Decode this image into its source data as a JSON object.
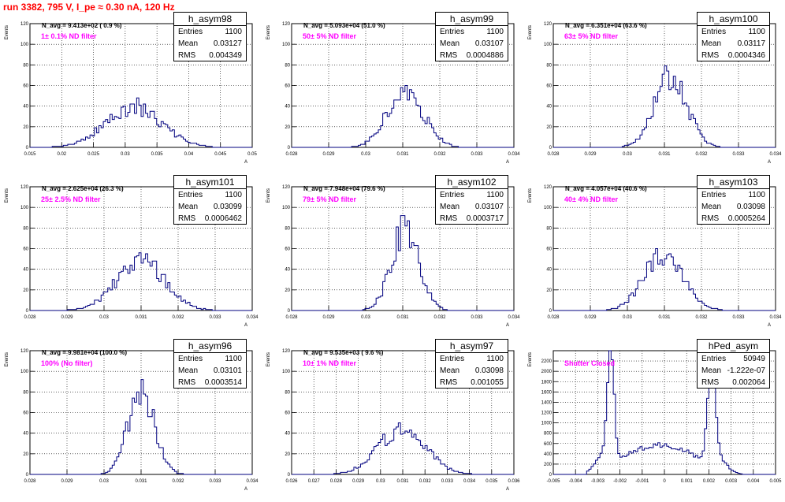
{
  "page_title": "run 3382,   795 V, I_pe ≈ 0.30 nA, 120 Hz",
  "colors": {
    "title": "#ff0000",
    "annotation": "#ff00ff",
    "histogram": "#00007f",
    "grid": "#000000"
  },
  "chart_data": [
    {
      "type": "histogram",
      "name": "h_asym98",
      "stats": {
        "Entries": "1100",
        "Mean": "0.03127",
        "RMS": "0.004349"
      },
      "navg_text": "N_avg = 9.413e+02 ( 0.9 %)",
      "annotation": "1± 0.1% ND filter",
      "ylabel": "Events",
      "xlabel": "A",
      "xlim": [
        0.015,
        0.05
      ],
      "ylim": [
        0,
        120
      ],
      "xticks": [
        0.015,
        0.02,
        0.025,
        0.03,
        0.035,
        0.04,
        0.045,
        0.05
      ],
      "xtick_labels": [
        "0.015",
        "0.02",
        "0.025",
        "0.03",
        "0.035",
        "0.04",
        "0.045",
        "0.05"
      ],
      "yticks": [
        0,
        20,
        40,
        60,
        80,
        100,
        120
      ],
      "ytick_labels": [
        "0",
        "20",
        "40",
        "60",
        "80",
        "100",
        "120"
      ],
      "grid": true,
      "mean": 0.03127,
      "rms": 0.004349,
      "peak": 40,
      "shape": "gauss"
    },
    {
      "type": "histogram",
      "name": "h_asym99",
      "stats": {
        "Entries": "1100",
        "Mean": "0.03107",
        "RMS": "0.0004886"
      },
      "navg_text": "N_avg = 5.093e+04 (51.0 %)",
      "annotation": "50± 5% ND filter",
      "ylabel": "Events",
      "xlabel": "A",
      "xlim": [
        0.028,
        0.034
      ],
      "ylim": [
        0,
        120
      ],
      "xticks": [
        0.028,
        0.029,
        0.03,
        0.031,
        0.032,
        0.033,
        0.034
      ],
      "xtick_labels": [
        "0.028",
        "0.029",
        "0.03",
        "0.031",
        "0.032",
        "0.033",
        "0.034"
      ],
      "yticks": [
        0,
        20,
        40,
        60,
        80,
        100,
        120
      ],
      "ytick_labels": [
        "0",
        "20",
        "40",
        "60",
        "80",
        "100",
        "120"
      ],
      "grid": true,
      "mean": 0.03107,
      "rms": 0.0004886,
      "peak": 55,
      "shape": "gauss"
    },
    {
      "type": "histogram",
      "name": "h_asym100",
      "stats": {
        "Entries": "1100",
        "Mean": "0.03117",
        "RMS": "0.0004346"
      },
      "navg_text": "N_avg = 6.351e+04 (63.6 %)",
      "annotation": "63± 5% ND filter",
      "ylabel": "Events",
      "xlabel": "A",
      "xlim": [
        0.028,
        0.034
      ],
      "ylim": [
        0,
        120
      ],
      "xticks": [
        0.028,
        0.029,
        0.03,
        0.031,
        0.032,
        0.033,
        0.034
      ],
      "xtick_labels": [
        "0.028",
        "0.029",
        "0.03",
        "0.031",
        "0.032",
        "0.033",
        "0.034"
      ],
      "yticks": [
        0,
        20,
        40,
        60,
        80,
        100,
        120
      ],
      "ytick_labels": [
        "0",
        "20",
        "40",
        "60",
        "80",
        "100",
        "120"
      ],
      "grid": true,
      "mean": 0.03117,
      "rms": 0.0004346,
      "peak": 70,
      "shape": "gauss"
    },
    {
      "type": "histogram",
      "name": "h_asym101",
      "stats": {
        "Entries": "1100",
        "Mean": "0.03099",
        "RMS": "0.0006462"
      },
      "navg_text": "N_avg = 2.625e+04 (26.3 %)",
      "annotation": "25± 2.5% ND filter",
      "ylabel": "Events",
      "xlabel": "A",
      "xlim": [
        0.028,
        0.034
      ],
      "ylim": [
        0,
        120
      ],
      "xticks": [
        0.028,
        0.029,
        0.03,
        0.031,
        0.032,
        0.033,
        0.034
      ],
      "xtick_labels": [
        "0.028",
        "0.029",
        "0.03",
        "0.031",
        "0.032",
        "0.033",
        "0.034"
      ],
      "yticks": [
        0,
        20,
        40,
        60,
        80,
        100,
        120
      ],
      "ytick_labels": [
        "0",
        "20",
        "40",
        "60",
        "80",
        "100",
        "120"
      ],
      "grid": true,
      "mean": 0.03099,
      "rms": 0.0006462,
      "peak": 48,
      "shape": "gauss"
    },
    {
      "type": "histogram",
      "name": "h_asym102",
      "stats": {
        "Entries": "1100",
        "Mean": "0.03107",
        "RMS": "0.0003717"
      },
      "navg_text": "N_avg = 7.948e+04 (79.6 %)",
      "annotation": "79± 5% ND filter",
      "ylabel": "Events",
      "xlabel": "A",
      "xlim": [
        0.028,
        0.034
      ],
      "ylim": [
        0,
        120
      ],
      "xticks": [
        0.028,
        0.029,
        0.03,
        0.031,
        0.032,
        0.033,
        0.034
      ],
      "xtick_labels": [
        "0.028",
        "0.029",
        "0.03",
        "0.031",
        "0.032",
        "0.033",
        "0.034"
      ],
      "yticks": [
        0,
        20,
        40,
        60,
        80,
        100,
        120
      ],
      "ytick_labels": [
        "0",
        "20",
        "40",
        "60",
        "80",
        "100",
        "120"
      ],
      "grid": true,
      "mean": 0.03107,
      "rms": 0.0003717,
      "peak": 80,
      "shape": "gauss"
    },
    {
      "type": "histogram",
      "name": "h_asym103",
      "stats": {
        "Entries": "1100",
        "Mean": "0.03098",
        "RMS": "0.0005264"
      },
      "navg_text": "N_avg = 4.057e+04 (40.6 %)",
      "annotation": "40± 4% ND filter",
      "ylabel": "Events",
      "xlabel": "A",
      "xlim": [
        0.028,
        0.034
      ],
      "ylim": [
        0,
        120
      ],
      "xticks": [
        0.028,
        0.029,
        0.03,
        0.031,
        0.032,
        0.033,
        0.034
      ],
      "xtick_labels": [
        "0.028",
        "0.029",
        "0.03",
        "0.031",
        "0.032",
        "0.033",
        "0.034"
      ],
      "yticks": [
        0,
        20,
        40,
        60,
        80,
        100,
        120
      ],
      "ytick_labels": [
        "0",
        "20",
        "40",
        "60",
        "80",
        "100",
        "120"
      ],
      "grid": true,
      "mean": 0.03098,
      "rms": 0.0005264,
      "peak": 55,
      "shape": "gauss"
    },
    {
      "type": "histogram",
      "name": "h_asym96",
      "stats": {
        "Entries": "1100",
        "Mean": "0.03101",
        "RMS": "0.0003514"
      },
      "navg_text": "N_avg = 9.981e+04 (100.0 %)",
      "annotation": "100% (No filter)",
      "ylabel": "Events",
      "xlabel": "A",
      "xlim": [
        0.028,
        0.034
      ],
      "ylim": [
        0,
        120
      ],
      "xticks": [
        0.028,
        0.029,
        0.03,
        0.031,
        0.032,
        0.033,
        0.034
      ],
      "xtick_labels": [
        "0.028",
        "0.029",
        "0.03",
        "0.031",
        "0.032",
        "0.033",
        "0.034"
      ],
      "yticks": [
        0,
        20,
        40,
        60,
        80,
        100,
        120
      ],
      "ytick_labels": [
        "0",
        "20",
        "40",
        "60",
        "80",
        "100",
        "120"
      ],
      "grid": true,
      "mean": 0.03101,
      "rms": 0.0003514,
      "peak": 82,
      "shape": "gauss"
    },
    {
      "type": "histogram",
      "name": "h_asym97",
      "stats": {
        "Entries": "1100",
        "Mean": "0.03098",
        "RMS": "0.001055"
      },
      "navg_text": "N_avg = 9.535e+03 ( 9.6 %)",
      "annotation": "10± 1% ND filter",
      "ylabel": "Events",
      "xlabel": "A",
      "xlim": [
        0.026,
        0.036
      ],
      "ylim": [
        0,
        120
      ],
      "xticks": [
        0.026,
        0.027,
        0.028,
        0.029,
        0.03,
        0.031,
        0.032,
        0.033,
        0.034,
        0.035,
        0.036
      ],
      "xtick_labels": [
        "0.026",
        "0.027",
        "0.028",
        "0.029",
        "0.03",
        "0.031",
        "0.032",
        "0.033",
        "0.034",
        "0.035",
        "0.036"
      ],
      "yticks": [
        0,
        20,
        40,
        60,
        80,
        100,
        120
      ],
      "ytick_labels": [
        "0",
        "20",
        "40",
        "60",
        "80",
        "100",
        "120"
      ],
      "grid": true,
      "mean": 0.03098,
      "rms": 0.001055,
      "peak": 45,
      "shape": "gauss"
    },
    {
      "type": "histogram",
      "name": "hPed_asym",
      "stats": {
        "Entries": "50949",
        "Mean": "-1.222e-07",
        "RMS": "0.002064"
      },
      "navg_text": "",
      "annotation": "Shutter Closed",
      "ylabel": "Events",
      "xlabel": "",
      "xlim": [
        -0.005,
        0.005
      ],
      "ylim": [
        0,
        2400
      ],
      "xticks": [
        -0.005,
        -0.004,
        -0.003,
        -0.002,
        -0.001,
        0,
        0.001,
        0.002,
        0.003,
        0.004,
        0.005
      ],
      "xtick_labels": [
        "-0.005",
        "-0.004",
        "-0.003",
        "-0.002",
        "-0.001",
        "0",
        "0.001",
        "0.002",
        "0.003",
        "0.004",
        "0.005"
      ],
      "yticks": [
        0,
        200,
        400,
        600,
        800,
        1000,
        1200,
        1400,
        1600,
        1800,
        2000,
        2200
      ],
      "ytick_labels": [
        "0",
        "200",
        "400",
        "600",
        "800",
        "1000",
        "1200",
        "1400",
        "1600",
        "1800",
        "2000",
        "2200"
      ],
      "grid": true,
      "mean": -1.222e-07,
      "rms": 0.002064,
      "peak": 2200,
      "shape": "bimodal",
      "peaks": [
        -0.0024,
        0.0021
      ]
    }
  ]
}
